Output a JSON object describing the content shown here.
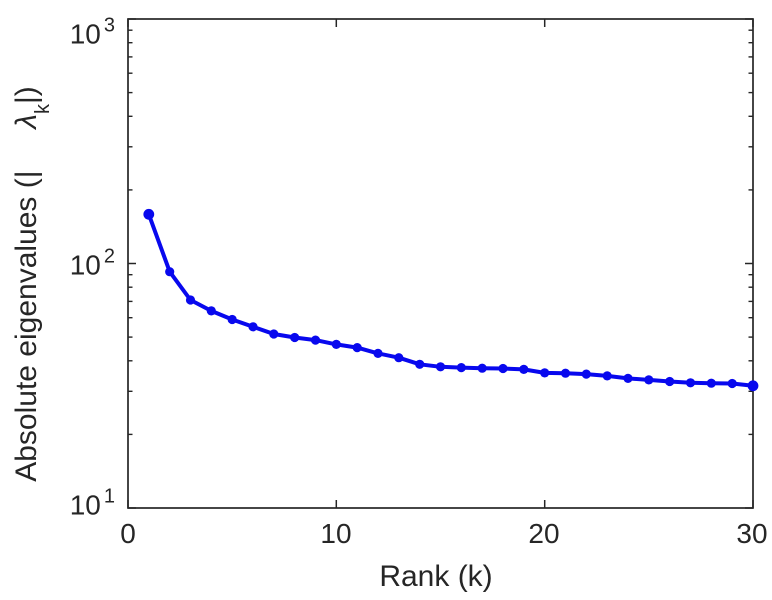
{
  "figure": {
    "background": "#ffffff"
  },
  "chart_data": {
    "type": "line",
    "title": "",
    "xlabel": "Rank (k)",
    "ylabel_parts": {
      "prefix": "Absolute eigenvalues (|",
      "gap": "     ",
      "symbol": "λ",
      "subscript": "k",
      "suffix": "|)"
    },
    "series": [
      {
        "name": "absolute-eigenvalues",
        "x": [
          1,
          2,
          3,
          4,
          5,
          6,
          7,
          8,
          9,
          10,
          11,
          12,
          13,
          14,
          15,
          16,
          17,
          18,
          19,
          20,
          21,
          22,
          23,
          24,
          25,
          26,
          27,
          28,
          29,
          30
        ],
        "values": [
          159,
          92.6,
          70.9,
          64,
          59,
          55.1,
          51.5,
          49.8,
          48.6,
          46.7,
          45.3,
          42.9,
          41.2,
          38.7,
          37.8,
          37.5,
          37.3,
          37.2,
          36.9,
          35.7,
          35.6,
          35.3,
          34.7,
          33.9,
          33.4,
          32.9,
          32.5,
          32.4,
          32.3,
          31.6
        ]
      }
    ],
    "xlim": [
      0,
      30
    ],
    "ylim": [
      10,
      1000
    ],
    "yscale": "log",
    "xscale": "linear",
    "grid": false,
    "legend": null,
    "x_ticks": [
      0,
      10,
      20,
      30
    ],
    "x_tick_labels": [
      "0",
      "10",
      "20",
      "30"
    ],
    "y_ticks": [
      10,
      100,
      1000
    ],
    "y_tick_base": "10",
    "y_tick_exponents": [
      "3",
      "2",
      "1"
    ],
    "line_color": "#0808ee",
    "marker": "filled-circle",
    "axis_color": "#262626"
  }
}
